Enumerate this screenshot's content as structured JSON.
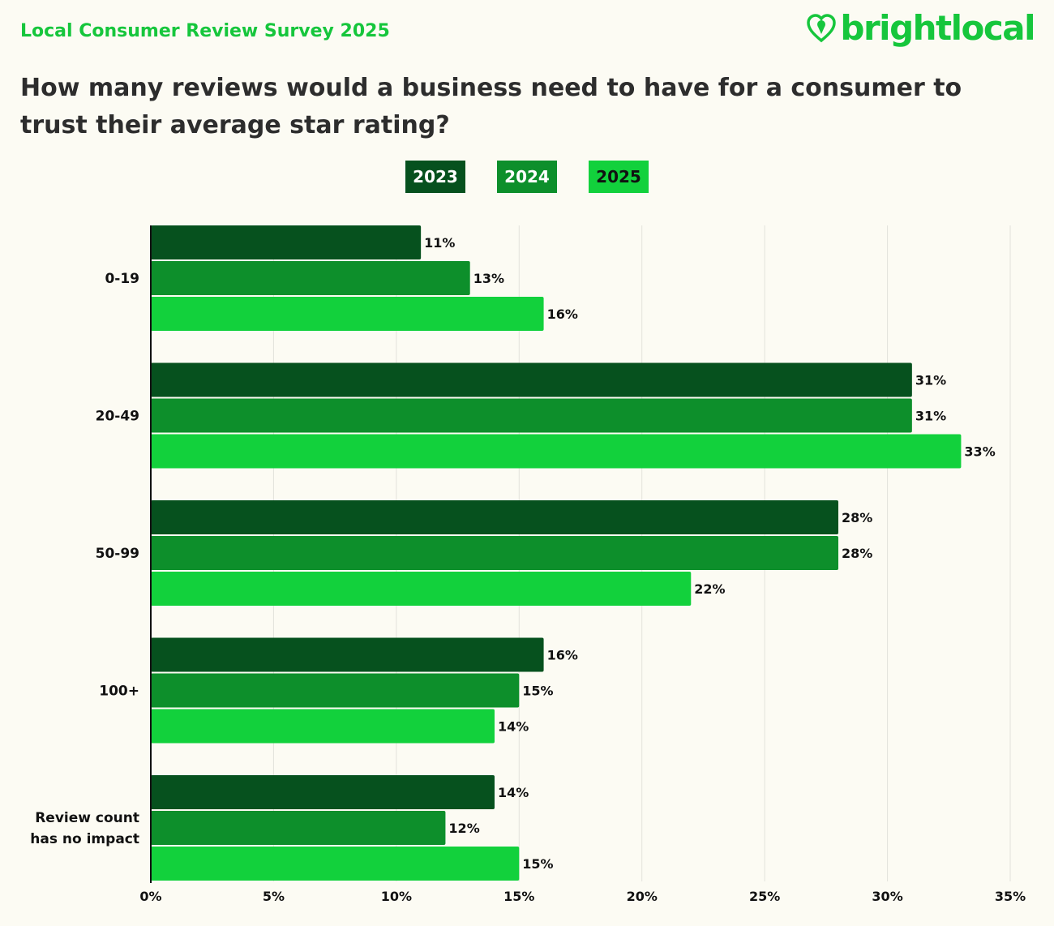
{
  "header": {
    "survey_title": "Local Consumer Review Survey 2025",
    "brand_name": "brightlocal",
    "brand_icon": "heart-pin-icon"
  },
  "question": "How many reviews would a business need to have for a consumer to trust their average star rating?",
  "colors": {
    "background": "#fcfbf3",
    "accent": "#16c63c",
    "series": [
      "#06511e",
      "#0d8f2b",
      "#12d13c"
    ],
    "grid": "#e2e2db"
  },
  "chart_data": {
    "type": "bar",
    "orientation": "horizontal",
    "title": "How many reviews would a business need to have for a consumer to trust their average star rating?",
    "categories": [
      "0-19",
      "20-49",
      "50-99",
      "100+",
      "Review count has no impact"
    ],
    "category_lines": [
      [
        "0-19"
      ],
      [
        "20-49"
      ],
      [
        "50-99"
      ],
      [
        "100+"
      ],
      [
        "Review count",
        "has no impact"
      ]
    ],
    "series": [
      {
        "name": "2023",
        "values": [
          11,
          31,
          28,
          16,
          14
        ],
        "label_color": "#ffffff"
      },
      {
        "name": "2024",
        "values": [
          13,
          31,
          28,
          15,
          12
        ],
        "label_color": "#ffffff"
      },
      {
        "name": "2025",
        "values": [
          16,
          33,
          22,
          14,
          15
        ],
        "label_color": "#111111"
      }
    ],
    "value_suffix": "%",
    "xlim": [
      0,
      35
    ],
    "xticks": [
      0,
      5,
      10,
      15,
      20,
      25,
      30,
      35
    ],
    "xtick_labels": [
      "0%",
      "5%",
      "10%",
      "15%",
      "20%",
      "25%",
      "30%",
      "35%"
    ],
    "grid": true,
    "legend_position": "top-center"
  }
}
